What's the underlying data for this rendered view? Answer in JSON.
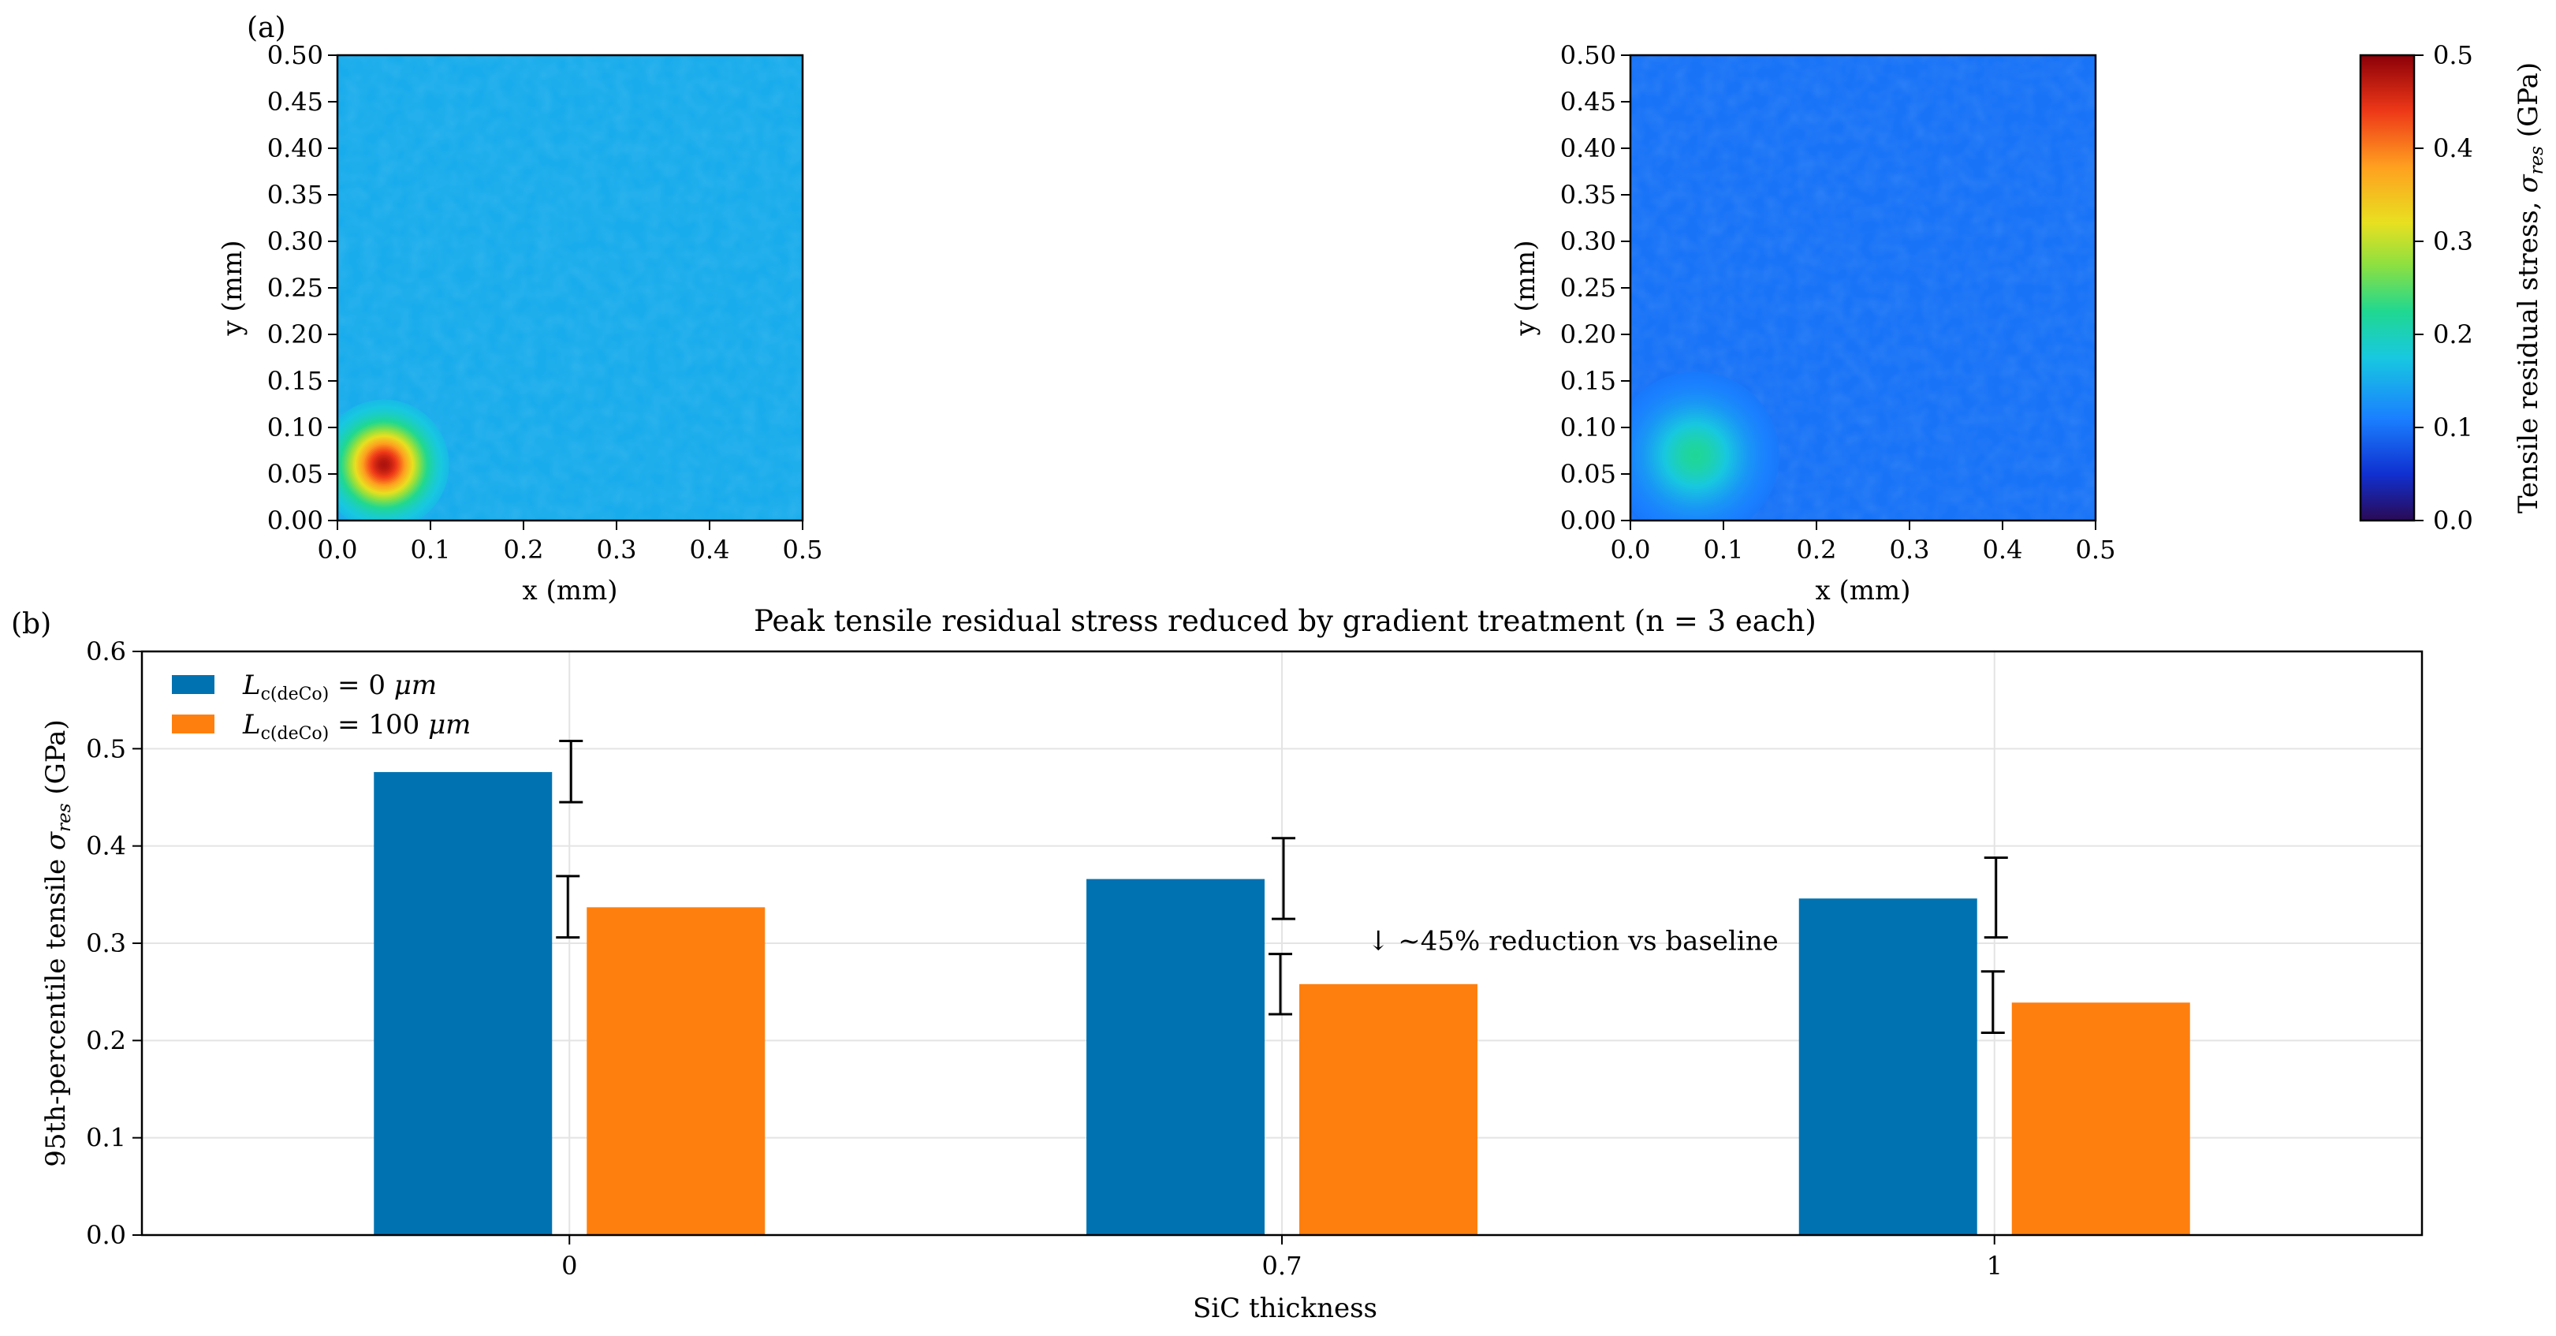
{
  "panels": {
    "a": "(a)",
    "b": "(b)"
  },
  "chart_data": [
    {
      "type": "heatmap",
      "panel": "(a) left",
      "xlabel": "x (mm)",
      "ylabel": "y (mm)",
      "xlim": [
        0.0,
        0.5
      ],
      "ylim": [
        0.0,
        0.5
      ],
      "xticks": [
        "0.0",
        "0.1",
        "0.2",
        "0.3",
        "0.4",
        "0.5"
      ],
      "yticks": [
        "0.00",
        "0.05",
        "0.10",
        "0.15",
        "0.20",
        "0.25",
        "0.30",
        "0.35",
        "0.40",
        "0.45",
        "0.50"
      ],
      "background_stress": 0.15,
      "hotspot": {
        "x": 0.05,
        "y": 0.06,
        "peak_stress": 0.48
      },
      "units": "GPa",
      "colormap": "jet"
    },
    {
      "type": "heatmap",
      "panel": "(a) right",
      "xlabel": "x (mm)",
      "ylabel": "y (mm)",
      "xlim": [
        0.0,
        0.5
      ],
      "ylim": [
        0.0,
        0.5
      ],
      "xticks": [
        "0.0",
        "0.1",
        "0.2",
        "0.3",
        "0.4",
        "0.5"
      ],
      "yticks": [
        "0.00",
        "0.05",
        "0.10",
        "0.15",
        "0.20",
        "0.25",
        "0.30",
        "0.35",
        "0.40",
        "0.45",
        "0.50"
      ],
      "background_stress": 0.1,
      "hotspot": {
        "x": 0.07,
        "y": 0.07,
        "peak_stress": 0.22
      },
      "units": "GPa",
      "colormap": "jet"
    },
    {
      "type": "colorbar",
      "label": "Tensile residual stress, σres (GPa)",
      "label_parts": [
        "Tensile residual stress, ",
        "σ",
        "res",
        " (GPa)"
      ],
      "range": [
        0.0,
        0.5
      ],
      "ticks": [
        "0.0",
        "0.1",
        "0.2",
        "0.3",
        "0.4",
        "0.5"
      ],
      "colormap": "jet"
    },
    {
      "type": "bar",
      "panel": "(b)",
      "title": "Peak tensile residual stress reduced by gradient treatment (n = 3 each)",
      "xlabel": "SiC thickness",
      "ylabel": "95th-percentile tensile σres (GPa)",
      "ylabel_parts": [
        "95th-percentile tensile ",
        "σ",
        "res",
        " (GPa)"
      ],
      "categories": [
        "0",
        "0.7",
        "1"
      ],
      "ylim": [
        0.0,
        0.6
      ],
      "yticks": [
        "0.0",
        "0.1",
        "0.2",
        "0.3",
        "0.4",
        "0.5",
        "0.6"
      ],
      "grid": true,
      "legend_position": "top-left",
      "series": [
        {
          "name": "Lc(deCo) = 0 μm",
          "name_parts": [
            "L",
            "c(deCo)",
            " = 0 ",
            "μm"
          ],
          "color": "#0072b2",
          "values": [
            0.476,
            0.366,
            0.346
          ],
          "errors": [
            {
              "low": 0.445,
              "high": 0.508
            },
            {
              "low": 0.325,
              "high": 0.408
            },
            {
              "low": 0.306,
              "high": 0.388
            }
          ]
        },
        {
          "name": "Lc(deCo) = 100 μm",
          "name_parts": [
            "L",
            "c(deCo)",
            " = 100 ",
            "μm"
          ],
          "color": "#ff7f0e",
          "values": [
            0.337,
            0.258,
            0.239
          ],
          "errors": [
            {
              "low": 0.306,
              "high": 0.369
            },
            {
              "low": 0.227,
              "high": 0.289
            },
            {
              "low": 0.208,
              "high": 0.271
            }
          ]
        }
      ],
      "annotations": [
        {
          "text": "↓  ~45% reduction vs baseline",
          "x": "0.7",
          "y": 0.293
        }
      ]
    }
  ]
}
